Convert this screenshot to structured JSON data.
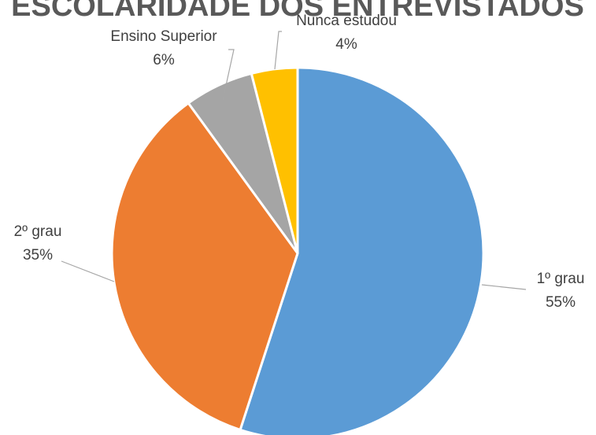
{
  "chart_data": {
    "type": "pie",
    "title": "ESCOLARIDADE DOS ENTREVISTADOS",
    "categories": [
      "1º grau",
      "2º grau",
      "Ensino Superior",
      "Nunca estudou"
    ],
    "values": [
      55,
      35,
      6,
      4
    ],
    "value_labels": [
      "55%",
      "35%",
      "6%",
      "4%"
    ],
    "colors": [
      "#5b9bd5",
      "#ed7d31",
      "#a5a5a5",
      "#ffc000"
    ]
  }
}
